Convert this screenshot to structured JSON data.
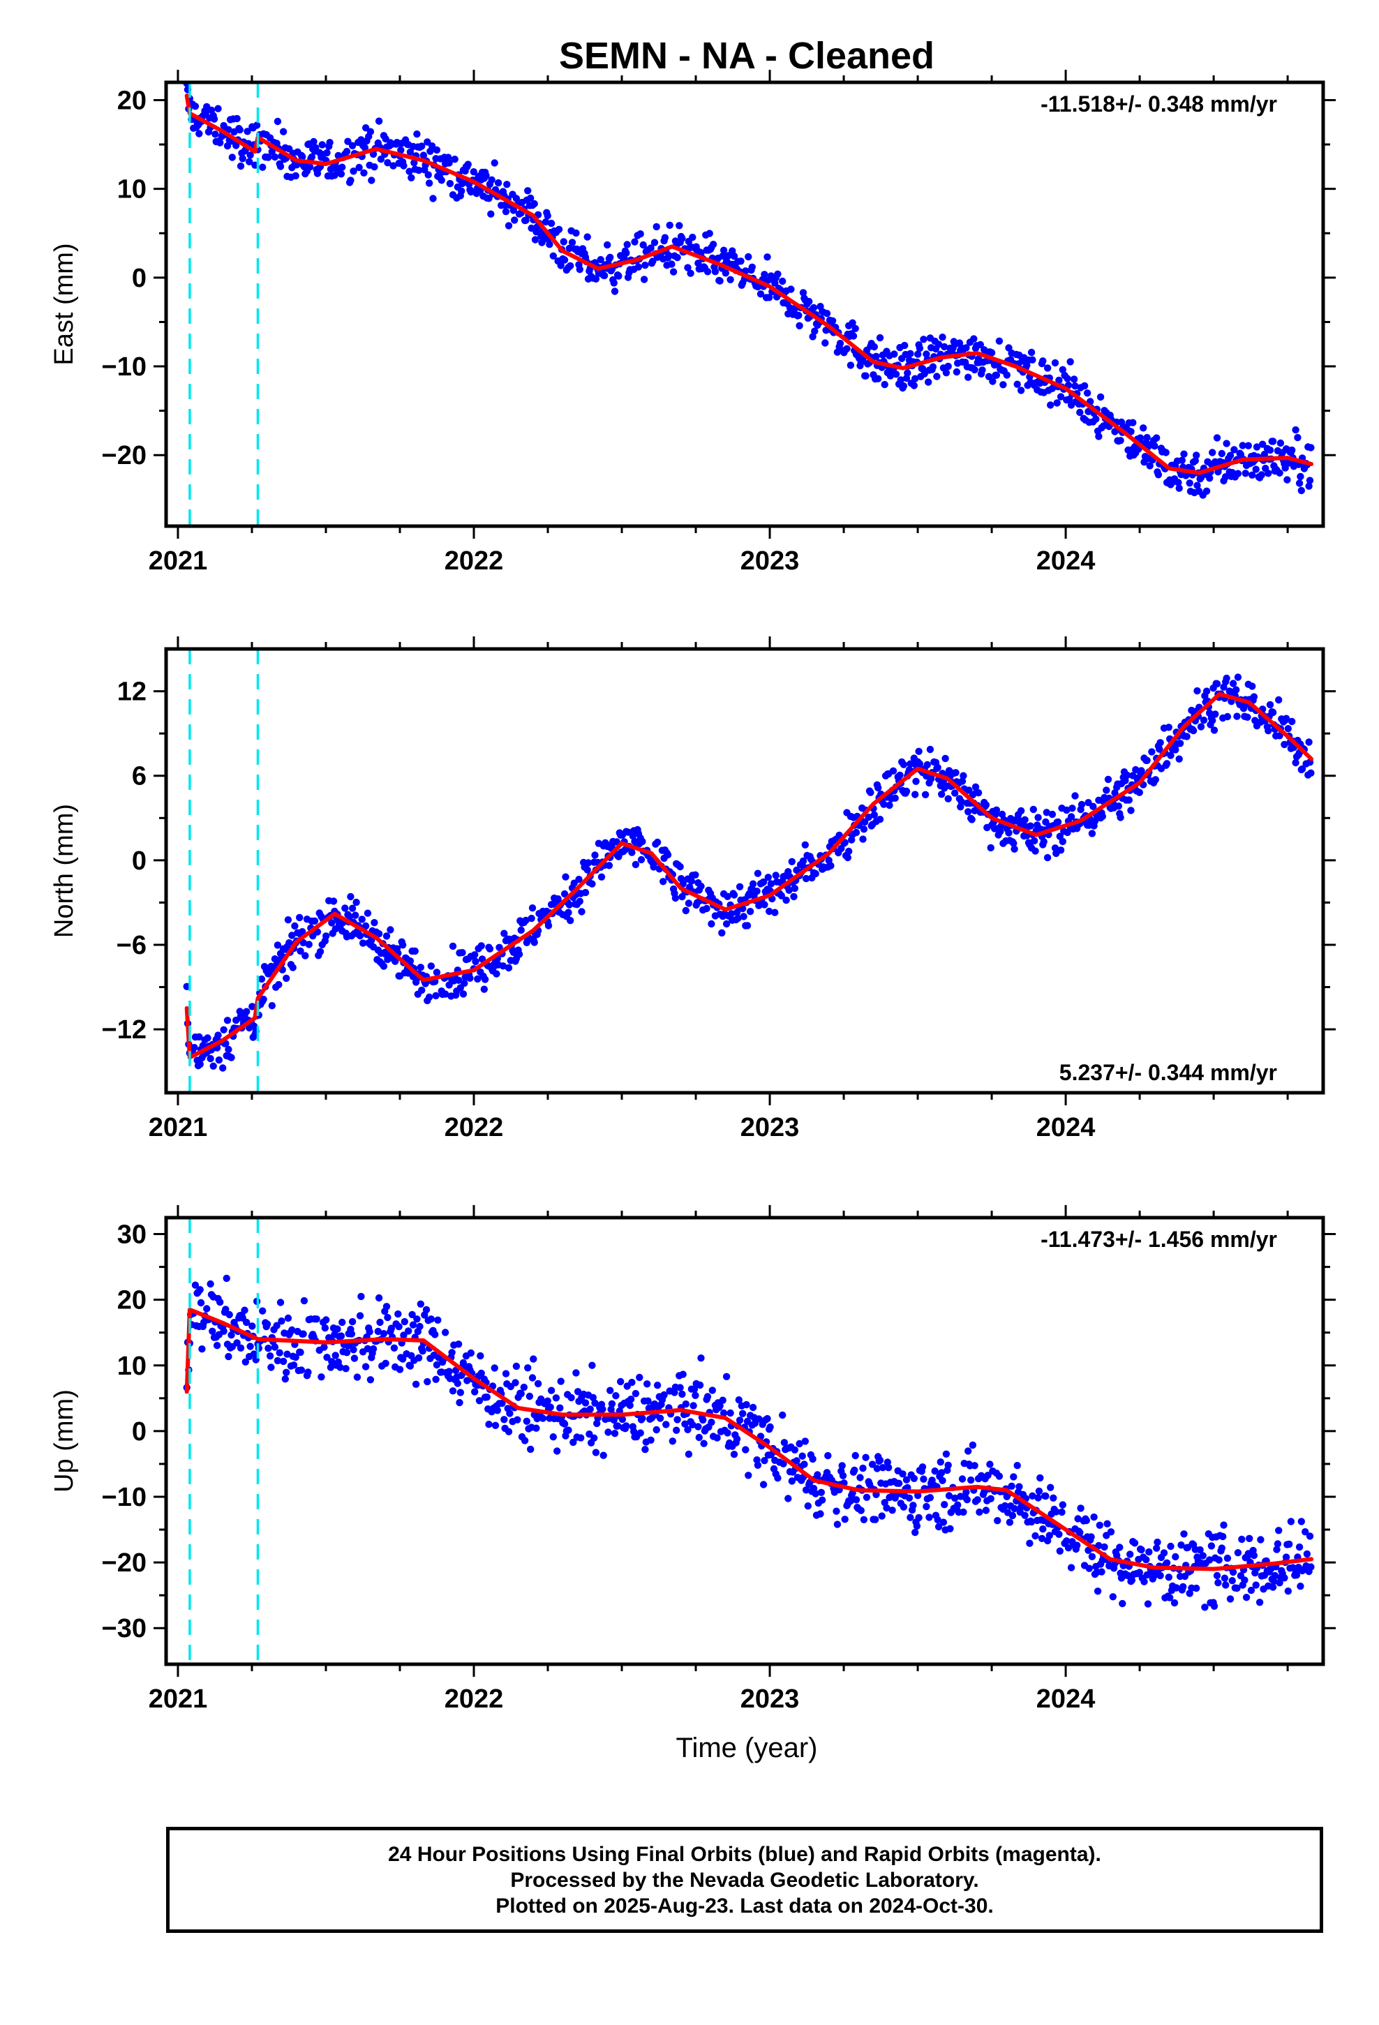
{
  "chart_data": {
    "type": "scatter",
    "title": "SEMN  - NA - Cleaned",
    "xlabel": "Time (year)",
    "xlim": [
      2020.96,
      2024.87
    ],
    "xticks": [
      "2021",
      "2022",
      "2023",
      "2024"
    ],
    "steps": [
      2021.04,
      2021.27
    ],
    "colors": {
      "points": "#0000ff",
      "model": "#ff0000",
      "steps": "#00e5ee",
      "frame": "#000000"
    },
    "panels": [
      {
        "ylabel": "East (mm)",
        "ylim": [
          -28,
          22
        ],
        "yticks": [
          20,
          10,
          0,
          -10,
          -20
        ],
        "rate": "-11.518+/- 0.348 mm/yr",
        "rate_position": "top-right",
        "scatter": 2.2,
        "model": [
          [
            2021.03,
            20.5
          ],
          [
            2021.04,
            18.5
          ],
          [
            2021.15,
            16.5
          ],
          [
            2021.26,
            14.2
          ],
          [
            2021.27,
            15.8
          ],
          [
            2021.4,
            13.2
          ],
          [
            2021.5,
            12.8
          ],
          [
            2021.67,
            14.5
          ],
          [
            2021.83,
            13.2
          ],
          [
            2022.0,
            10.8
          ],
          [
            2022.2,
            7.0
          ],
          [
            2022.3,
            3.0
          ],
          [
            2022.42,
            1.0
          ],
          [
            2022.55,
            2.0
          ],
          [
            2022.67,
            3.5
          ],
          [
            2022.83,
            1.5
          ],
          [
            2023.0,
            -1.0
          ],
          [
            2023.2,
            -5.5
          ],
          [
            2023.35,
            -9.5
          ],
          [
            2023.45,
            -10.2
          ],
          [
            2023.58,
            -9.0
          ],
          [
            2023.7,
            -8.5
          ],
          [
            2023.83,
            -10.0
          ],
          [
            2024.0,
            -12.5
          ],
          [
            2024.2,
            -17.5
          ],
          [
            2024.35,
            -21.5
          ],
          [
            2024.45,
            -22.0
          ],
          [
            2024.6,
            -20.5
          ],
          [
            2024.75,
            -20.3
          ],
          [
            2024.83,
            -21.0
          ]
        ]
      },
      {
        "ylabel": "North (mm)",
        "ylim": [
          -16.5,
          15
        ],
        "yticks": [
          12,
          6,
          0,
          -6,
          -12
        ],
        "rate": "5.237+/- 0.344 mm/yr",
        "rate_position": "bottom-right",
        "scatter": 1.4,
        "model": [
          [
            2021.03,
            -10.5
          ],
          [
            2021.04,
            -14.0
          ],
          [
            2021.15,
            -12.8
          ],
          [
            2021.26,
            -11.2
          ],
          [
            2021.27,
            -9.8
          ],
          [
            2021.4,
            -5.8
          ],
          [
            2021.53,
            -3.8
          ],
          [
            2021.67,
            -5.5
          ],
          [
            2021.83,
            -8.5
          ],
          [
            2022.0,
            -7.8
          ],
          [
            2022.2,
            -5.0
          ],
          [
            2022.35,
            -2.0
          ],
          [
            2022.5,
            1.2
          ],
          [
            2022.6,
            0.5
          ],
          [
            2022.7,
            -2.0
          ],
          [
            2022.85,
            -3.5
          ],
          [
            2023.0,
            -2.5
          ],
          [
            2023.2,
            0.5
          ],
          [
            2023.35,
            4.0
          ],
          [
            2023.5,
            6.5
          ],
          [
            2023.6,
            5.8
          ],
          [
            2023.75,
            3.0
          ],
          [
            2023.9,
            1.8
          ],
          [
            2024.05,
            2.8
          ],
          [
            2024.25,
            5.5
          ],
          [
            2024.4,
            9.5
          ],
          [
            2024.52,
            11.8
          ],
          [
            2024.62,
            11.2
          ],
          [
            2024.75,
            8.8
          ],
          [
            2024.83,
            7.2
          ]
        ]
      },
      {
        "ylabel": "Up (mm)",
        "ylim": [
          -35.5,
          32.5
        ],
        "yticks": [
          30,
          20,
          10,
          0,
          -10,
          -20,
          -30
        ],
        "rate": "-11.473+/- 1.456 mm/yr",
        "rate_position": "top-right",
        "scatter": 4.8,
        "model": [
          [
            2021.03,
            6.0
          ],
          [
            2021.04,
            18.5
          ],
          [
            2021.15,
            16.5
          ],
          [
            2021.27,
            14.0
          ],
          [
            2021.5,
            13.5
          ],
          [
            2021.7,
            14.0
          ],
          [
            2021.83,
            13.8
          ],
          [
            2022.0,
            8.0
          ],
          [
            2022.15,
            3.5
          ],
          [
            2022.3,
            2.5
          ],
          [
            2022.5,
            2.5
          ],
          [
            2022.7,
            3.2
          ],
          [
            2022.85,
            2.0
          ],
          [
            2023.0,
            -2.5
          ],
          [
            2023.15,
            -7.5
          ],
          [
            2023.3,
            -9.0
          ],
          [
            2023.5,
            -9.2
          ],
          [
            2023.7,
            -8.5
          ],
          [
            2023.8,
            -9.0
          ],
          [
            2023.95,
            -13.5
          ],
          [
            2024.15,
            -19.5
          ],
          [
            2024.3,
            -20.8
          ],
          [
            2024.5,
            -21.0
          ],
          [
            2024.7,
            -20.2
          ],
          [
            2024.83,
            -19.5
          ]
        ]
      }
    ]
  },
  "footer": {
    "line1": "24 Hour Positions Using Final Orbits (blue) and Rapid Orbits (magenta).",
    "line2": "Processed by the Nevada Geodetic Laboratory.",
    "line3": "Plotted on 2025-Aug-23. Last data on 2024-Oct-30."
  }
}
